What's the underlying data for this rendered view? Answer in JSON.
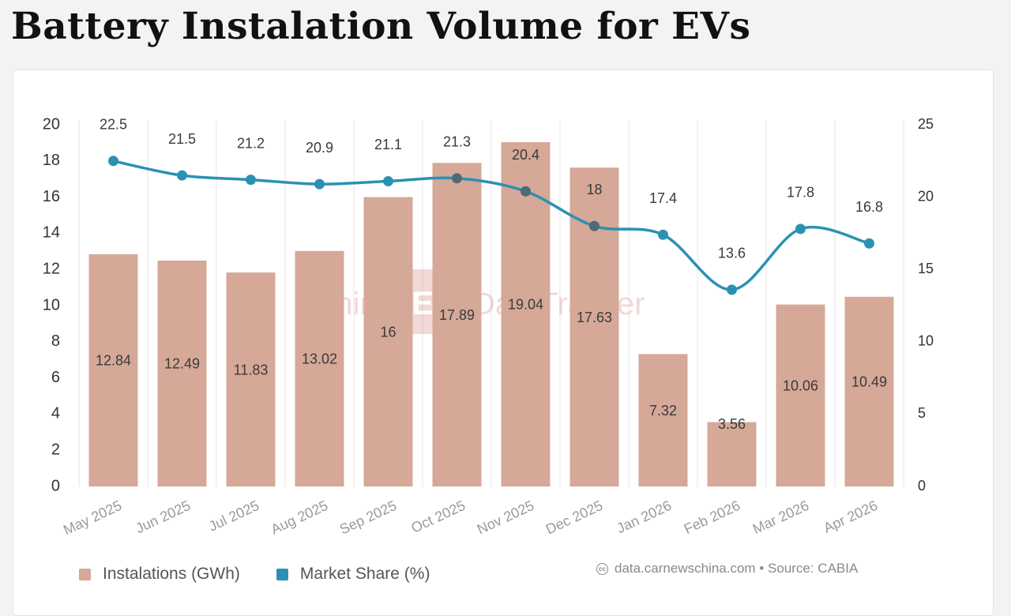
{
  "title": "Battery Instalation Volume for EVs",
  "watermark": {
    "left": "China",
    "badge": "EV",
    "right": "DataTracker"
  },
  "credit": {
    "icon": "cc-icon",
    "text": "data.carnewschina.com • Source: CABIA"
  },
  "colors": {
    "bar": "#d5a898",
    "line": "#2b91b3",
    "line_dark": "#4f6a75",
    "axis_text": "#333333",
    "category_text": "#9a9a9a",
    "grid": "#e6e6e6"
  },
  "chart_data": {
    "type": "bar+line",
    "categories": [
      "May 2025",
      "Jun 2025",
      "Jul 2025",
      "Aug 2025",
      "Sep 2025",
      "Oct 2025",
      "Nov 2025",
      "Dec 2025",
      "Jan 2026",
      "Feb 2026",
      "Mar 2026",
      "Apr 2026"
    ],
    "series": [
      {
        "name": "Instalations (GWh)",
        "type": "bar",
        "axis": "left",
        "values": [
          12.84,
          12.49,
          11.83,
          13.02,
          16,
          17.89,
          19.04,
          17.63,
          7.32,
          3.56,
          10.06,
          10.49
        ],
        "labels": [
          "12.84",
          "12.49",
          "11.83",
          "13.02",
          "16",
          "17.89",
          "19.04",
          "17.63",
          "7.32",
          "3.56",
          "10.06",
          "10.49"
        ]
      },
      {
        "name": "Market Share (%)",
        "type": "line",
        "axis": "right",
        "values": [
          22.5,
          21.5,
          21.2,
          20.9,
          21.1,
          21.3,
          20.4,
          18,
          17.4,
          13.6,
          17.8,
          16.8
        ],
        "labels": [
          "22.5",
          "21.5",
          "21.2",
          "20.9",
          "21.1",
          "21.3",
          "20.4",
          "18",
          "17.4",
          "13.6",
          "17.8",
          "16.8"
        ]
      }
    ],
    "y_left": {
      "range": [
        0,
        20
      ],
      "ticks": [
        "0",
        "2",
        "4",
        "6",
        "8",
        "10",
        "12",
        "14",
        "16",
        "18",
        "20"
      ]
    },
    "y_right": {
      "range": [
        0,
        25
      ],
      "ticks": [
        "0",
        "5",
        "10",
        "15",
        "20",
        "25"
      ]
    },
    "grid": "vertical",
    "legend_position": "bottom-left"
  }
}
